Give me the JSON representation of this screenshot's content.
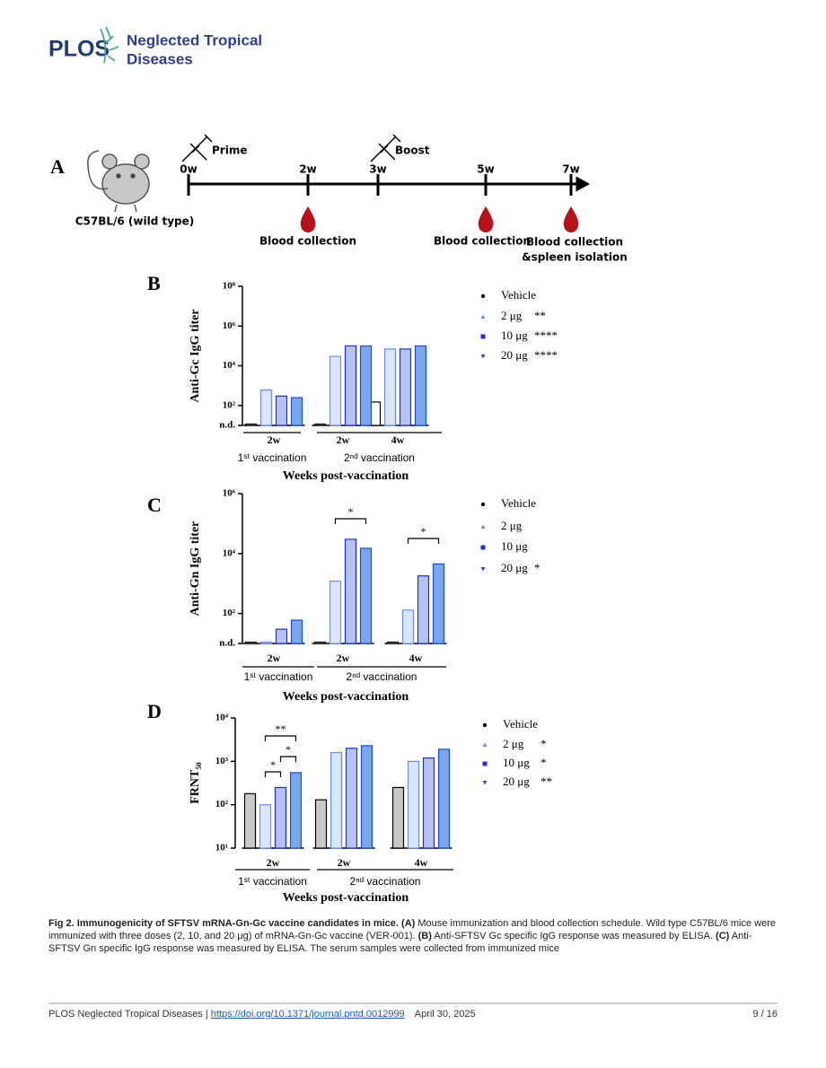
{
  "header": {
    "logo": "PLOS",
    "journal_line1": "Neglected Tropical",
    "journal_line2": "Diseases"
  },
  "figure": {
    "panel_a": {
      "label": "A",
      "strain": "C57BL/6 (wild type)",
      "events": [
        "Prime",
        "Boost"
      ],
      "weeks": [
        "0w",
        "2w",
        "3w",
        "5w",
        "7w"
      ],
      "collections": [
        "Blood collection",
        "Blood collection",
        "Blood collection"
      ],
      "collection_note": "&spleen isolation"
    }
  },
  "chart_data": [
    {
      "type": "bar",
      "panel": "B",
      "ylabel": "Anti-Gc IgG titer",
      "xlabel": "Weeks post-vaccination",
      "categories": [
        "2w",
        "2w",
        "4w"
      ],
      "groups": [
        "1ˢᵗ vaccination",
        "2ⁿᵈ vaccination"
      ],
      "log_scale": true,
      "ylim": [
        10,
        100000000
      ],
      "yticks": [
        {
          "value": 10,
          "label": "n.d."
        },
        {
          "value": 100,
          "label": "10²"
        },
        {
          "value": 10000,
          "label": "10⁴"
        },
        {
          "value": 1000000,
          "label": "10⁶"
        },
        {
          "value": 100000000,
          "label": "10⁸"
        }
      ],
      "series": [
        {
          "name": "Vehicle",
          "color": "#ffffff",
          "edge": "#000000",
          "values": [
            10,
            10,
            150
          ]
        },
        {
          "name": "2 μg",
          "significance": "**",
          "color": "#dce6fa",
          "edge": "#6b8ee8",
          "values": [
            600,
            30000,
            70000
          ]
        },
        {
          "name": "10 μg",
          "significance": "****",
          "color": "#b6c2f5",
          "edge": "#1b2fd6",
          "values": [
            300,
            100000,
            70000
          ]
        },
        {
          "name": "20 μg",
          "significance": "****",
          "color": "#7aa6ee",
          "edge": "#1f4fd0",
          "values": [
            250,
            100000,
            100000
          ]
        }
      ]
    },
    {
      "type": "bar",
      "panel": "C",
      "ylabel": "Anti-Gn IgG titer",
      "xlabel": "Weeks post-vaccination",
      "categories": [
        "2w",
        "2w",
        "4w"
      ],
      "groups": [
        "1ˢᵗ vaccination",
        "2ⁿᵈ vaccination"
      ],
      "log_scale": true,
      "ylim": [
        10,
        1000000
      ],
      "yticks": [
        {
          "value": 10,
          "label": "n.d."
        },
        {
          "value": 100,
          "label": "10²"
        },
        {
          "value": 10000,
          "label": "10⁴"
        },
        {
          "value": 1000000,
          "label": "10⁶"
        }
      ],
      "annotations": [
        "*",
        "*"
      ],
      "series": [
        {
          "name": "Vehicle",
          "color": "#ffffff",
          "edge": "#000000",
          "values": [
            10,
            10,
            10
          ]
        },
        {
          "name": "2 μg",
          "color": "#dce6fa",
          "edge": "#6b8ee8",
          "values": [
            10,
            1200,
            130
          ]
        },
        {
          "name": "10 μg",
          "color": "#b6c2f5",
          "edge": "#1b2fd6",
          "values": [
            30,
            30000,
            1800
          ]
        },
        {
          "name": "20 μg",
          "significance": "*",
          "color": "#7aa6ee",
          "edge": "#1f4fd0",
          "values": [
            60,
            15000,
            4500
          ]
        }
      ]
    },
    {
      "type": "bar",
      "panel": "D",
      "ylabel": "FRNT₅₀",
      "xlabel": "Weeks post-vaccination",
      "categories": [
        "2w",
        "2w",
        "4w"
      ],
      "groups": [
        "1ˢᵗ vaccination",
        "2ⁿᵈ vaccination"
      ],
      "log_scale": true,
      "ylim": [
        10,
        10000
      ],
      "yticks": [
        {
          "value": 10,
          "label": "10¹"
        },
        {
          "value": 100,
          "label": "10²"
        },
        {
          "value": 1000,
          "label": "10³"
        },
        {
          "value": 10000,
          "label": "10⁴"
        }
      ],
      "annotations": [
        "**",
        "*",
        "*"
      ],
      "series": [
        {
          "name": "Vehicle",
          "color": "#c8c8c8",
          "edge": "#000000",
          "values": [
            180,
            130,
            250
          ]
        },
        {
          "name": "2 μg",
          "significance": "*",
          "color": "#dce6fa",
          "edge": "#6b8ee8",
          "values": [
            100,
            1600,
            1000
          ]
        },
        {
          "name": "10 μg",
          "significance": "*",
          "color": "#b6c2f5",
          "edge": "#1b2fd6",
          "values": [
            250,
            2000,
            1200
          ]
        },
        {
          "name": "20 μg",
          "significance": "**",
          "color": "#7aa6ee",
          "edge": "#1f4fd0",
          "values": [
            550,
            2300,
            1900
          ]
        }
      ]
    }
  ],
  "caption": [
    {
      "text": "Fig 2.  Immunogenicity of SFTSV mRNA-Gn-Gc vaccine candidates in mice. (A)",
      "bold": true
    },
    {
      "text": " Mouse immunization and blood collection schedule. Wild type C57BL/6 mice were immunized with three doses (2, 10, and 20 μg) of mRNA-Gn-Gc vaccine (VER-001). ",
      "bold": false
    },
    {
      "text": "(B)",
      "bold": true
    },
    {
      "text": " Anti-SFTSV Gc specific IgG response was measured by ELISA. ",
      "bold": false
    },
    {
      "text": "(C)",
      "bold": true
    },
    {
      "text": " Anti-SFTSV Gn specific IgG response was measured by ELISA. The serum samples were collected from immunized mice",
      "bold": false
    }
  ],
  "footer": {
    "journal": "PLOS Neglected Tropical Diseases |",
    "link": "https://doi.org/10.1371/journal.pntd.0012999",
    "date": "April 30, 2025",
    "page": "9 / 16"
  }
}
